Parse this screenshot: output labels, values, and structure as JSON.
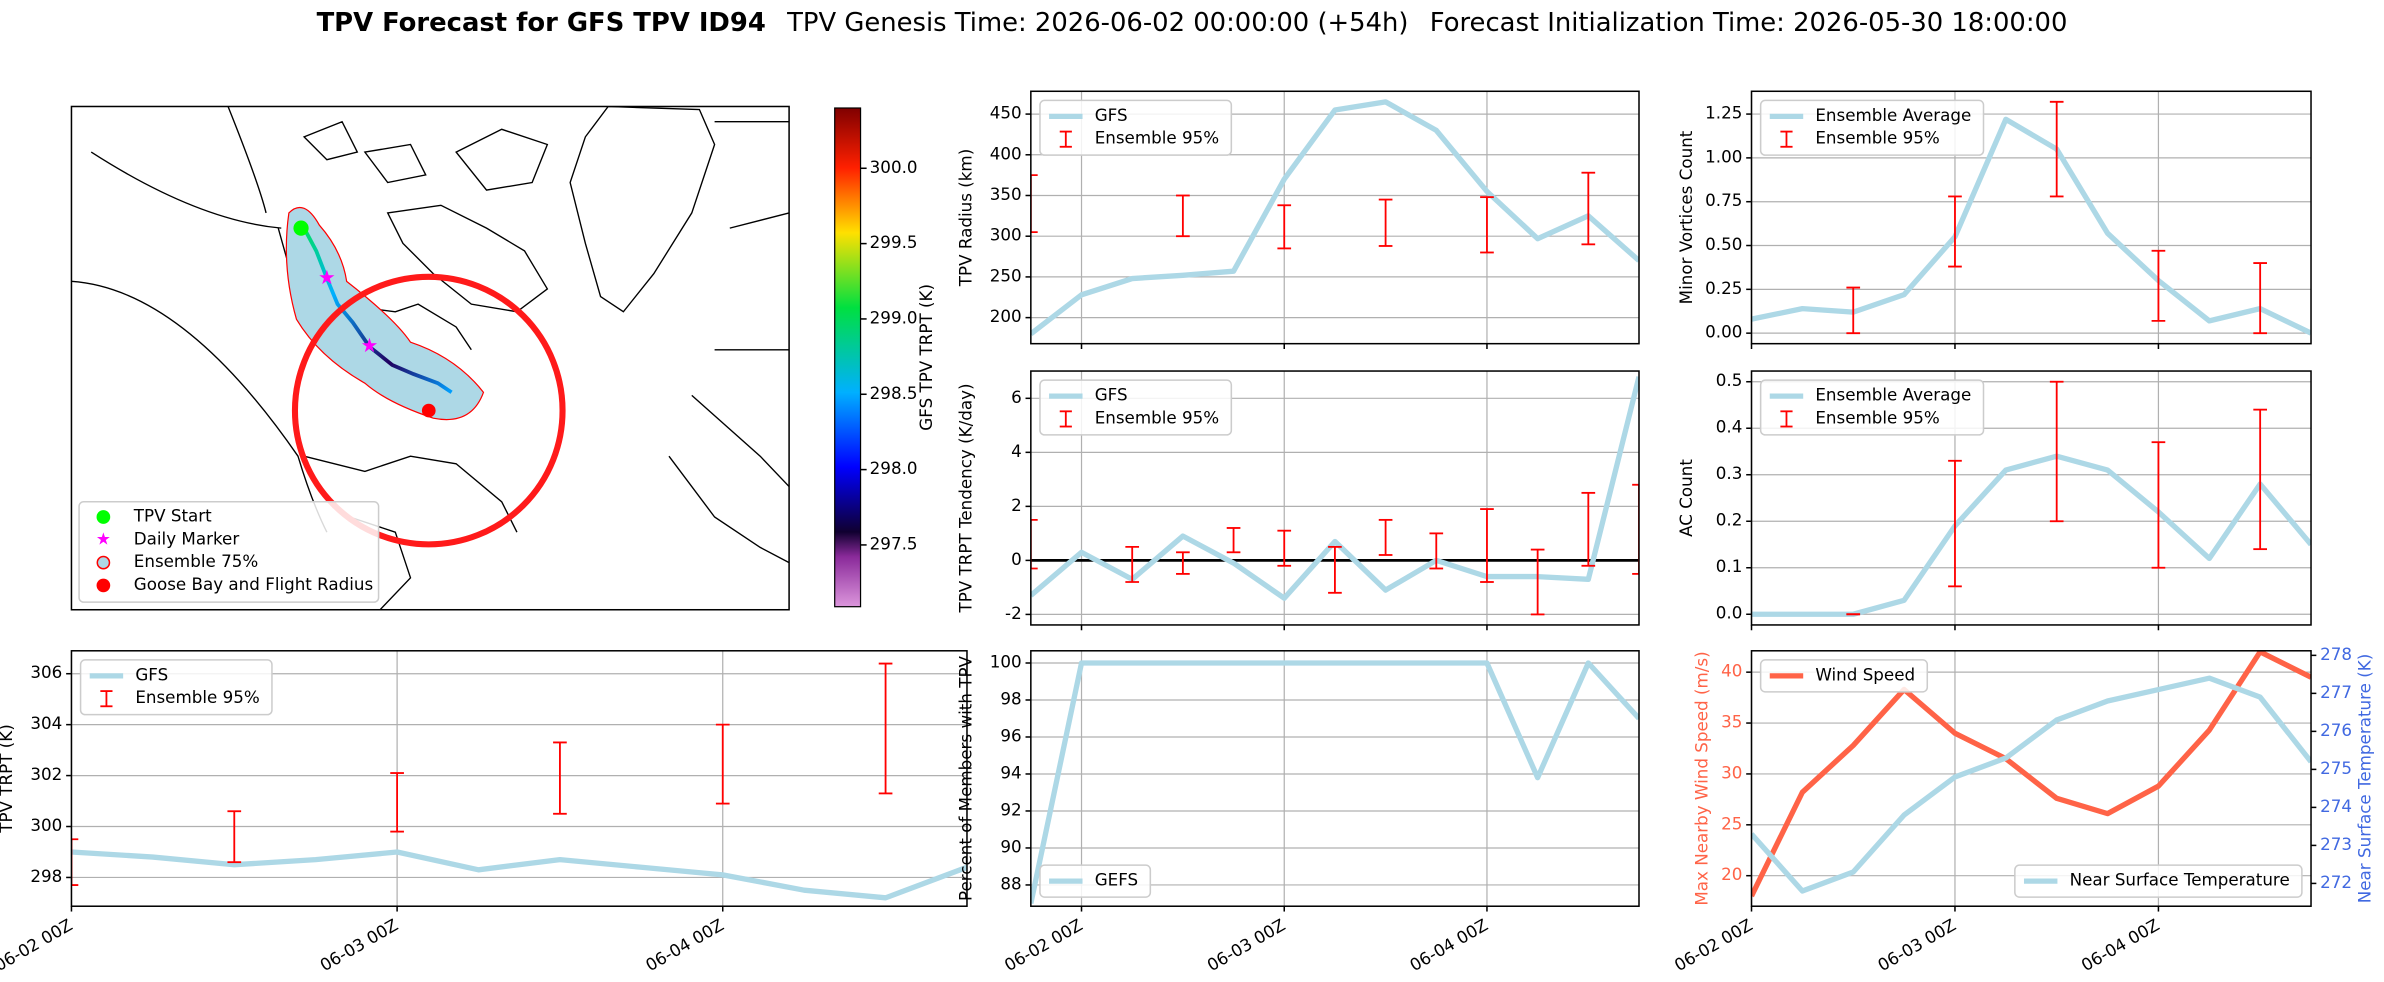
{
  "title": [
    "TPV Forecast for GFS TPV ID94",
    "TPV Genesis Time: 2026-06-02 00:00:00 (+54h)",
    "Forecast Initialization Time: 2026-05-30 18:00:00"
  ],
  "chart_data": [
    {
      "type": "map",
      "legend": [
        "TPV Start",
        "Daily Marker",
        "Ensemble 75%",
        "Goose Bay and Flight Radius"
      ],
      "colorbar": {
        "label": "GFS TPV TRPT (K)",
        "clim": [
          297.09,
          300.4
        ],
        "ticks": [
          297.5,
          {
            "value": 298,
            "label": "298.0"
          },
          298.5,
          {
            "value": 299,
            "label": "299.0"
          },
          299.5,
          {
            "value": 300,
            "label": "300.0"
          }
        ]
      }
    },
    {
      "type": "line",
      "ylabel": "TPV TRPT (K)",
      "legend": "upper left",
      "grid": true,
      "x": [
        "06-02 00Z",
        "06-02 06Z",
        "06-02 12Z",
        "06-02 18Z",
        "06-03 00Z",
        "06-03 06Z",
        "06-03 12Z",
        "06-03 18Z",
        "06-04 00Z",
        "06-04 06Z",
        "06-04 12Z",
        "06-04 18Z"
      ],
      "xticks": [
        "06-02 00Z",
        "06-03 00Z",
        "06-04 00Z"
      ],
      "ylim": [
        296.87,
        306.9
      ],
      "yticks": [
        298,
        300,
        302,
        304,
        306
      ],
      "series": [
        {
          "name": "GFS",
          "color": "#add8e6",
          "values": [
            299.0,
            298.8,
            298.5,
            298.7,
            299.0,
            298.3,
            298.7,
            298.4,
            298.1,
            297.5,
            297.2,
            298.4
          ]
        },
        {
          "name": "Ensemble 95%",
          "color": "#ff0000",
          "low": [
            297.7,
            null,
            298.6,
            null,
            299.8,
            null,
            300.5,
            null,
            300.9,
            null,
            301.3,
            null
          ],
          "high": [
            299.5,
            null,
            300.6,
            null,
            302.1,
            null,
            303.3,
            null,
            304.0,
            null,
            306.4,
            null
          ]
        }
      ]
    },
    {
      "type": "line",
      "ylabel": "TPV Radius (km)",
      "legend": "upper left",
      "grid": true,
      "x": [
        "06-01 18Z",
        "06-02 00Z",
        "06-02 06Z",
        "06-02 12Z",
        "06-02 18Z",
        "06-03 00Z",
        "06-03 06Z",
        "06-03 12Z",
        "06-03 18Z",
        "06-04 00Z",
        "06-04 06Z",
        "06-04 12Z",
        "06-04 18Z"
      ],
      "ylim": [
        168,
        478
      ],
      "yticks": [
        200,
        250,
        300,
        350,
        400,
        450
      ],
      "series": [
        {
          "name": "GFS",
          "color": "#add8e6",
          "values": [
            180,
            228,
            248,
            252,
            257,
            370,
            455,
            465,
            430,
            355,
            297,
            325,
            270
          ]
        },
        {
          "name": "Ensemble 95%",
          "color": "#ff0000",
          "low": [
            305,
            null,
            null,
            300,
            null,
            285,
            null,
            288,
            null,
            280,
            null,
            290,
            null
          ],
          "high": [
            375,
            null,
            null,
            350,
            null,
            338,
            null,
            345,
            null,
            348,
            null,
            378,
            null
          ]
        }
      ]
    },
    {
      "type": "line",
      "ylabel": "TPV TRPT Tendency (K/day)",
      "legend": "upper left",
      "grid": true,
      "hline": 0,
      "x": [
        "06-01 18Z",
        "06-02 00Z",
        "06-02 06Z",
        "06-02 12Z",
        "06-02 18Z",
        "06-03 00Z",
        "06-03 06Z",
        "06-03 12Z",
        "06-03 18Z",
        "06-04 00Z",
        "06-04 06Z",
        "06-04 12Z",
        "06-04 18Z"
      ],
      "ylim": [
        -2.39,
        7.01
      ],
      "yticks": [
        -2,
        0,
        2,
        4,
        6
      ],
      "series": [
        {
          "name": "GFS",
          "color": "#add8e6",
          "values": [
            -1.3,
            0.3,
            -0.7,
            0.9,
            -0.1,
            -1.4,
            0.7,
            -1.1,
            0.0,
            -0.6,
            -0.6,
            -0.7,
            6.8
          ]
        },
        {
          "name": "Ensemble 95%",
          "color": "#ff0000",
          "low": [
            -0.3,
            null,
            -0.8,
            -0.5,
            0.3,
            -0.2,
            -1.2,
            0.2,
            -0.3,
            -0.8,
            -2.0,
            -0.2,
            -0.5
          ],
          "high": [
            1.5,
            null,
            0.5,
            0.3,
            1.2,
            1.1,
            0.5,
            1.5,
            1.0,
            1.9,
            0.4,
            2.5,
            2.8
          ]
        }
      ]
    },
    {
      "type": "line",
      "ylabel": "Percent of Members with TPV",
      "legend": "lower left",
      "grid": true,
      "x": [
        "06-01 18Z",
        "06-02 00Z",
        "06-02 06Z",
        "06-02 12Z",
        "06-02 18Z",
        "06-03 00Z",
        "06-03 06Z",
        "06-03 12Z",
        "06-03 18Z",
        "06-04 00Z",
        "06-04 06Z",
        "06-04 12Z",
        "06-04 18Z"
      ],
      "xticks": [
        "06-02 00Z",
        "06-03 00Z",
        "06-04 00Z"
      ],
      "ylim": [
        86.85,
        100.66
      ],
      "yticks": [
        88,
        90,
        92,
        94,
        96,
        98,
        100
      ],
      "series": [
        {
          "name": "GEFS",
          "color": "#add8e6",
          "values": [
            87,
            100,
            100,
            100,
            100,
            100,
            100,
            100,
            100,
            100,
            93.8,
            100,
            97
          ]
        }
      ]
    },
    {
      "type": "line",
      "ylabel": "Minor Vortices Count",
      "legend": "upper left",
      "grid": true,
      "x": [
        "06-02 00Z",
        "06-02 06Z",
        "06-02 12Z",
        "06-02 18Z",
        "06-03 00Z",
        "06-03 06Z",
        "06-03 12Z",
        "06-03 18Z",
        "06-04 00Z",
        "06-04 06Z",
        "06-04 12Z",
        "06-04 18Z"
      ],
      "ylim": [
        -0.06,
        1.38
      ],
      "yticks": [
        {
          "value": 0,
          "label": "0.00"
        },
        0.25,
        {
          "value": 0.5,
          "label": "0.50"
        },
        0.75,
        {
          "value": 1,
          "label": "1.00"
        },
        1.25
      ],
      "series": [
        {
          "name": "Ensemble Average",
          "color": "#add8e6",
          "values": [
            0.08,
            0.14,
            0.12,
            0.22,
            0.55,
            1.22,
            1.05,
            0.57,
            0.3,
            0.07,
            0.14,
            0.0
          ]
        },
        {
          "name": "Ensemble 95%",
          "color": "#ff0000",
          "low": [
            null,
            null,
            0.0,
            null,
            0.38,
            null,
            0.78,
            null,
            0.07,
            null,
            0.0,
            null
          ],
          "high": [
            null,
            null,
            0.26,
            null,
            0.78,
            null,
            1.32,
            null,
            0.47,
            null,
            0.4,
            null
          ]
        }
      ]
    },
    {
      "type": "line",
      "ylabel": "AC Count",
      "legend": "upper left",
      "grid": true,
      "x": [
        "06-02 00Z",
        "06-02 06Z",
        "06-02 12Z",
        "06-02 18Z",
        "06-03 00Z",
        "06-03 06Z",
        "06-03 12Z",
        "06-03 18Z",
        "06-04 00Z",
        "06-04 06Z",
        "06-04 12Z",
        "06-04 18Z"
      ],
      "ylim": [
        -0.023,
        0.523
      ],
      "yticks": [
        {
          "value": 0,
          "label": "0.0"
        },
        0.1,
        0.2,
        0.3,
        0.4,
        0.5
      ],
      "series": [
        {
          "name": "Ensemble Average",
          "color": "#add8e6",
          "values": [
            0,
            0,
            0,
            0.03,
            0.19,
            0.31,
            0.34,
            0.31,
            0.22,
            0.12,
            0.28,
            0.15
          ]
        },
        {
          "name": "Ensemble 95%",
          "color": "#ff0000",
          "low": [
            null,
            null,
            0,
            null,
            0.06,
            null,
            0.2,
            null,
            0.1,
            null,
            0.14,
            null
          ],
          "high": [
            null,
            null,
            0,
            null,
            0.33,
            null,
            0.5,
            null,
            0.37,
            null,
            0.44,
            null
          ]
        }
      ]
    },
    {
      "type": "line",
      "ylabel": "Max Nearby Wind Speed (m/s)",
      "y2label": "Near Surface Temperature (K)",
      "ylabel_color": "#ff6347",
      "y2label_color": "#4169e1",
      "legend": "upper left",
      "legend2": "lower right",
      "grid": true,
      "x": [
        "06-02 00Z",
        "06-02 06Z",
        "06-02 12Z",
        "06-02 18Z",
        "06-03 00Z",
        "06-03 06Z",
        "06-03 12Z",
        "06-03 18Z",
        "06-04 00Z",
        "06-04 06Z",
        "06-04 12Z",
        "06-04 18Z"
      ],
      "xticks": [
        "06-02 00Z",
        "06-03 00Z",
        "06-04 00Z"
      ],
      "ylim": [
        17.0,
        42.1
      ],
      "yticks": [
        20,
        25,
        30,
        35,
        40
      ],
      "y2lim": [
        271.4,
        278.12
      ],
      "y2ticks": [
        272,
        273,
        274,
        275,
        276,
        277,
        278
      ],
      "series": [
        {
          "name": "Wind Speed",
          "color": "#ff6347",
          "values": [
            18,
            28.2,
            32.8,
            38.3,
            34,
            31.5,
            27.6,
            26.1,
            28.8,
            34.3,
            42,
            39.5
          ]
        },
        {
          "name": "Near Surface Temperature",
          "color": "#add8e6",
          "axis": "y2",
          "values": [
            273.3,
            271.8,
            272.3,
            273.8,
            274.8,
            275.3,
            276.3,
            276.8,
            277.1,
            277.4,
            276.9,
            275.2
          ]
        }
      ]
    }
  ]
}
